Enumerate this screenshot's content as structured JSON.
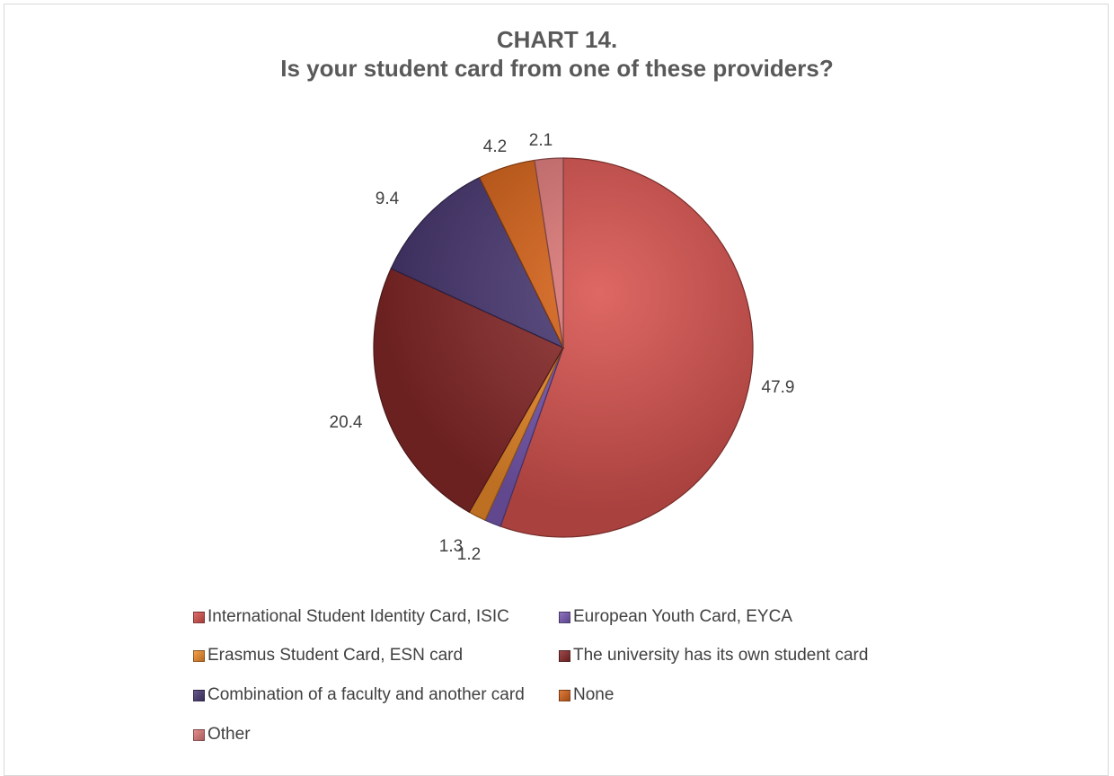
{
  "chart_data": {
    "type": "pie",
    "title": "CHART 14.",
    "subtitle": "Is your student card from one of these providers?",
    "categories": [
      "International Student Identity Card, ISIC",
      "European Youth Card, EYCA",
      "Erasmus Student Card, ESN card",
      "The university has its own student card",
      "Combination of a faculty and another card",
      "None",
      "Other"
    ],
    "values": [
      47.9,
      1.2,
      1.3,
      20.4,
      9.4,
      4.2,
      2.1
    ],
    "value_labels": [
      "47.9",
      "1.2",
      "1.3",
      "20.4",
      "9.4",
      "4.2",
      "2.1"
    ],
    "colors": [
      "#d9534f",
      "#7b5bb6",
      "#f28e2b",
      "#8b2a2a",
      "#4b3a75",
      "#d9641a",
      "#e07a7a"
    ],
    "legend_position": "bottom"
  }
}
